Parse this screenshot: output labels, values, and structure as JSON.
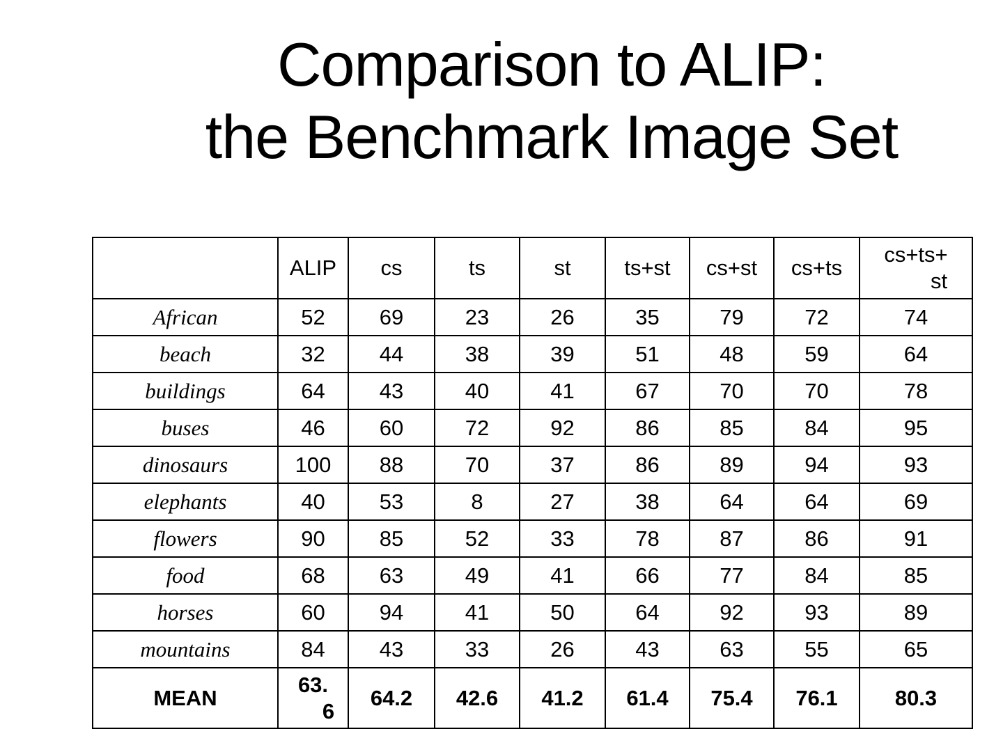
{
  "slide": {
    "title_line1": "Comparison to ALIP:",
    "title_line2": "the Benchmark Image Set"
  },
  "table": {
    "header_labels": [
      "",
      "ALIP",
      "cs",
      "ts",
      "st",
      "ts+st",
      "cs+st",
      "cs+ts",
      "cs+ts+st"
    ],
    "header_last_wrap": [
      "cs+ts+",
      "st"
    ],
    "rows": [
      {
        "label": "African",
        "values": [
          52,
          69,
          23,
          26,
          35,
          79,
          72,
          74
        ]
      },
      {
        "label": "beach",
        "values": [
          32,
          44,
          38,
          39,
          51,
          48,
          59,
          64
        ]
      },
      {
        "label": "buildings",
        "values": [
          64,
          43,
          40,
          41,
          67,
          70,
          70,
          78
        ]
      },
      {
        "label": "buses",
        "values": [
          46,
          60,
          72,
          92,
          86,
          85,
          84,
          95
        ]
      },
      {
        "label": "dinosaurs",
        "values": [
          100,
          88,
          70,
          37,
          86,
          89,
          94,
          93
        ]
      },
      {
        "label": "elephants",
        "values": [
          40,
          53,
          8,
          27,
          38,
          64,
          64,
          69
        ]
      },
      {
        "label": "flowers",
        "values": [
          90,
          85,
          52,
          33,
          78,
          87,
          86,
          91
        ]
      },
      {
        "label": "food",
        "values": [
          68,
          63,
          49,
          41,
          66,
          77,
          84,
          85
        ]
      },
      {
        "label": "horses",
        "values": [
          60,
          94,
          41,
          50,
          64,
          92,
          93,
          89
        ]
      },
      {
        "label": "mountains",
        "values": [
          84,
          43,
          33,
          26,
          43,
          63,
          55,
          65
        ]
      }
    ],
    "mean": {
      "label": "MEAN",
      "values": [
        "63.6",
        "64.2",
        "42.6",
        "41.2",
        "61.4",
        "75.4",
        "76.1",
        "80.3"
      ],
      "alip_wrap": [
        "63.",
        "6"
      ]
    }
  }
}
